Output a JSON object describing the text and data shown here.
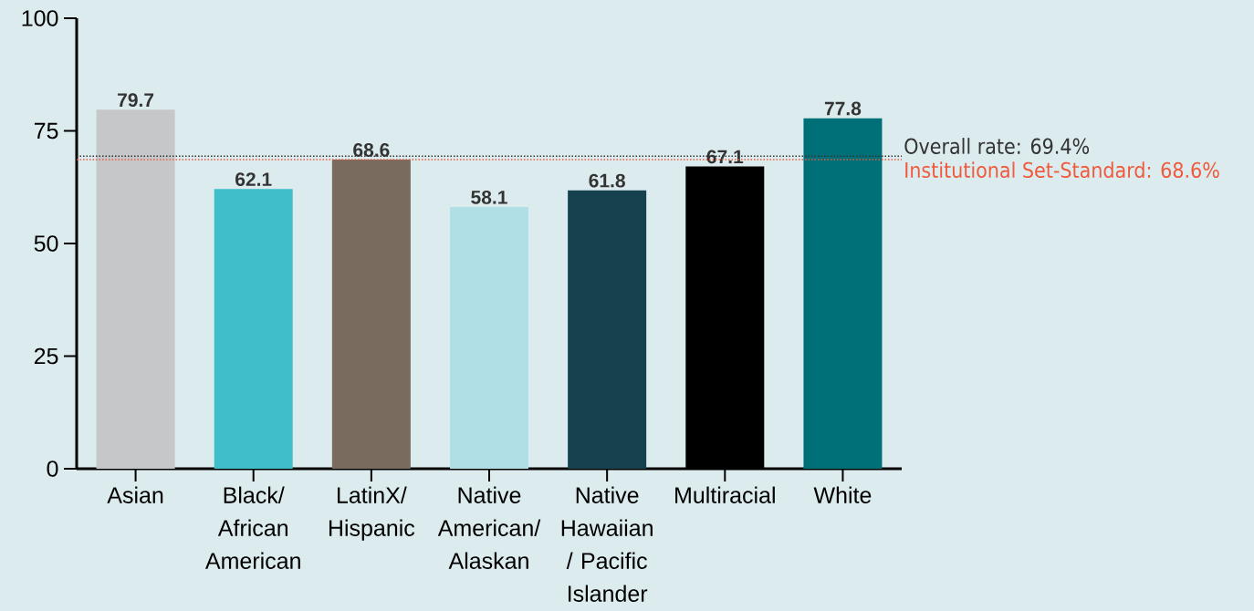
{
  "chart_data": {
    "type": "bar",
    "categories": [
      "Asian",
      "Black/ African American",
      "LatinX/ Hispanic",
      "Native American/ Alaskan",
      "Native Hawaiian / Pacific Islander",
      "Multiracial",
      "White"
    ],
    "values": [
      79.7,
      62.1,
      68.6,
      58.1,
      61.8,
      67.1,
      77.8
    ],
    "colors": [
      "#c6c7c9",
      "#40bfca",
      "#796b5e",
      "#b0e0e5",
      "#16424f",
      "#000000",
      "#007078"
    ],
    "ylim": [
      0,
      100
    ],
    "yticks": [
      0,
      25,
      50,
      75,
      100
    ],
    "data_labels": true,
    "ref_lines": [
      {
        "axis": "y",
        "value": 69.4,
        "label": "Overall rate: 69.4%",
        "color": "#333333",
        "line_style": "dotted"
      },
      {
        "axis": "y",
        "value": 68.6,
        "label": "Institutional Set-Standard: 68.6%",
        "color": "#f05a3c",
        "line_style": "dotted"
      }
    ]
  }
}
